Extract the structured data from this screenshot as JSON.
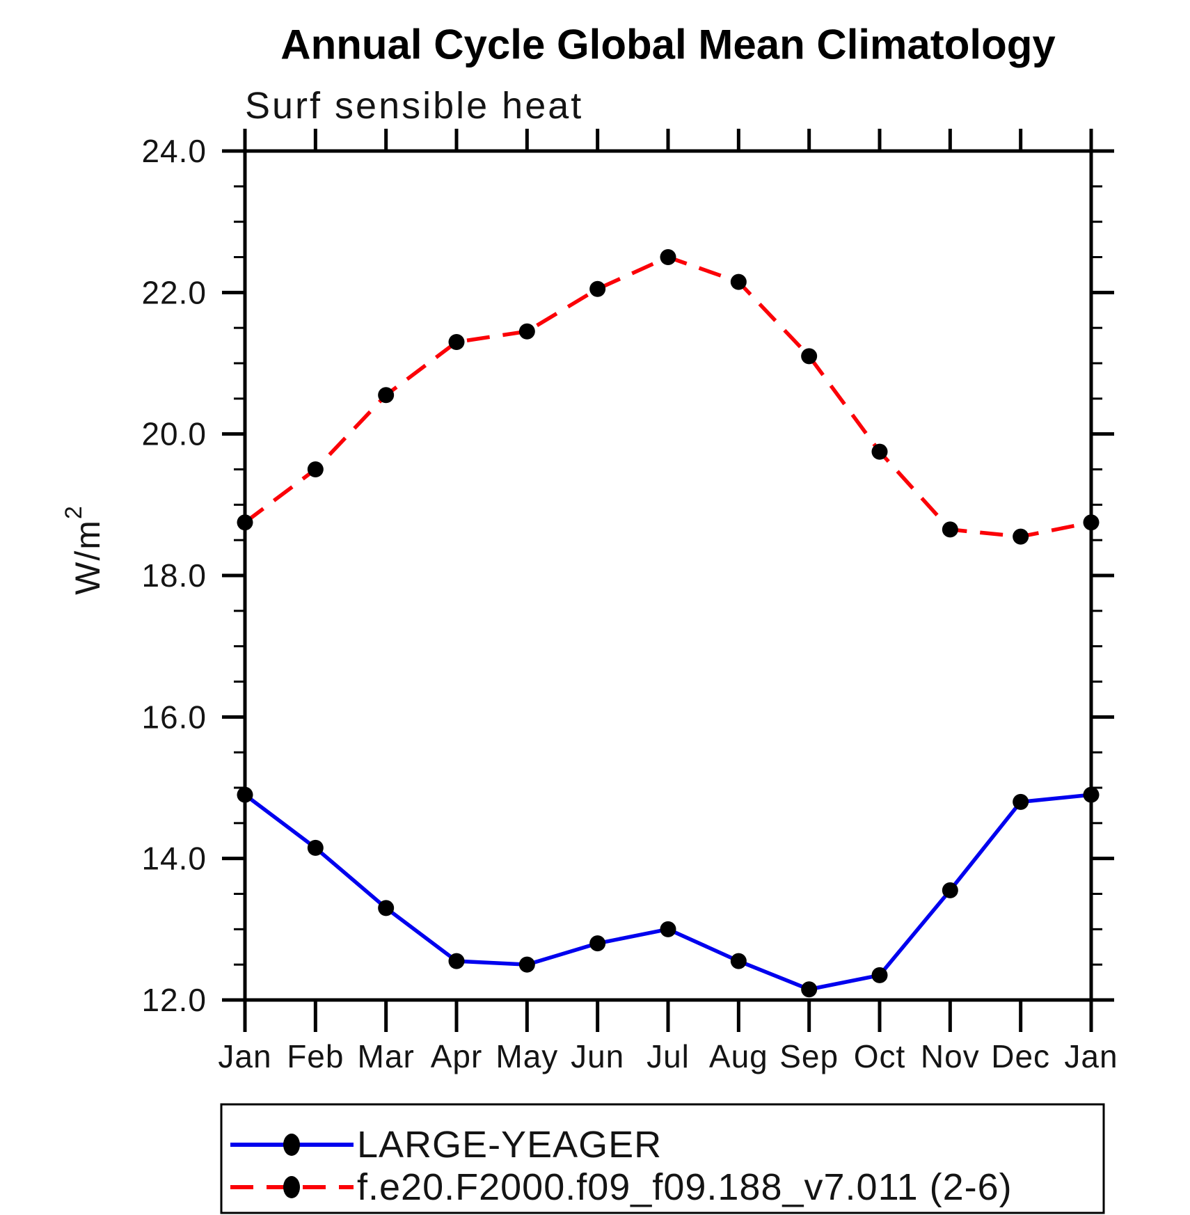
{
  "chart": {
    "title": "Annual Cycle Global Mean Climatology",
    "subtitle": "Surf sensible heat",
    "ylabel_base": "W/m",
    "ylabel_exponent": "2"
  },
  "chart_data": {
    "type": "line",
    "title": "Annual Cycle Global Mean Climatology",
    "subtitle": "Surf sensible heat",
    "ylabel": "W/m2",
    "xlabel": "",
    "categories": [
      "Jan",
      "Feb",
      "Mar",
      "Apr",
      "May",
      "Jun",
      "Jul",
      "Aug",
      "Sep",
      "Oct",
      "Nov",
      "Dec",
      "Jan"
    ],
    "series": [
      {
        "name": "LARGE-YEAGER",
        "color": "#0000ee",
        "line_style": "solid",
        "marker": "filled-black-circle",
        "values": [
          14.9,
          14.15,
          13.3,
          12.55,
          12.5,
          12.8,
          13.0,
          12.55,
          12.15,
          12.35,
          13.55,
          14.8,
          14.9
        ]
      },
      {
        "name": "f.e20.F2000.f09_f09.188_v7.011 (2-6)",
        "color": "#fb0007",
        "line_style": "dashed",
        "marker": "filled-black-circle",
        "values": [
          18.75,
          19.5,
          20.55,
          21.3,
          21.45,
          22.05,
          22.5,
          22.15,
          21.1,
          19.75,
          18.65,
          18.55,
          18.75
        ]
      }
    ],
    "ylim": [
      12.0,
      24.0
    ],
    "y_major_step": 2.0,
    "y_minor_step": 0.5,
    "y_tick_format": "one-decimal",
    "grid": "off",
    "legend_position": "bottom",
    "marker_color": "#000000",
    "axis_color": "#000000"
  }
}
